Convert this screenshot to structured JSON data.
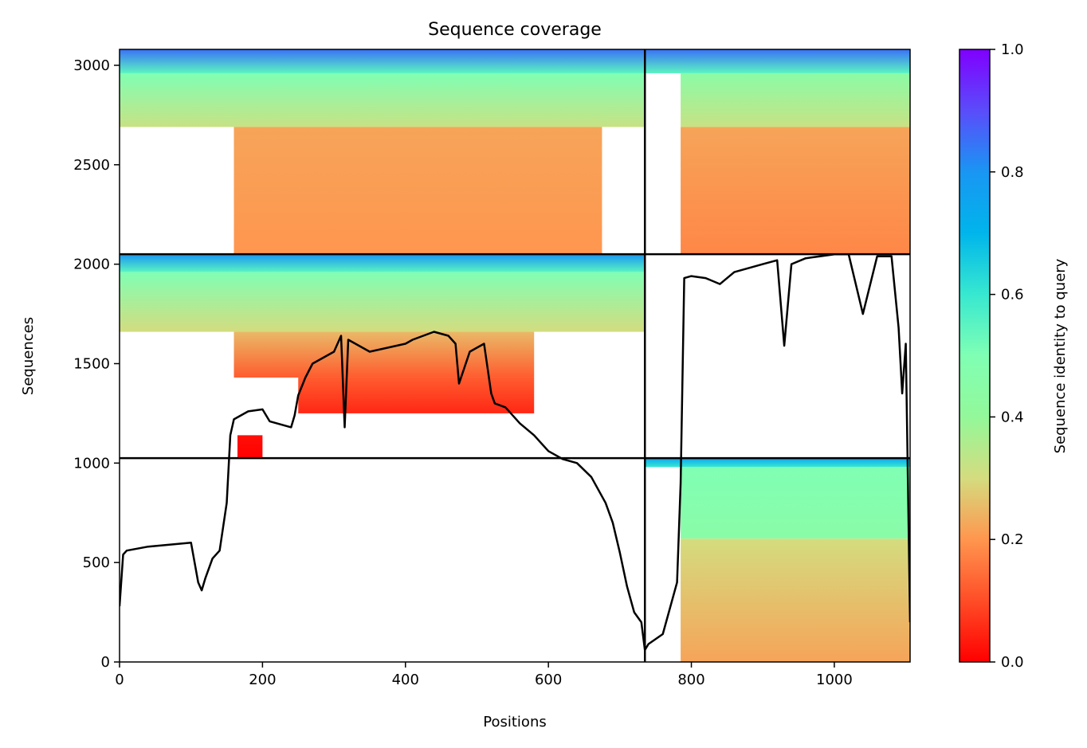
{
  "chart_data": {
    "type": "heatmap",
    "title": "Sequence coverage",
    "xlabel": "Positions",
    "ylabel": "Sequences",
    "xlim": [
      0,
      1106
    ],
    "ylim": [
      0,
      3080
    ],
    "x_ticks": [
      0,
      200,
      400,
      600,
      800,
      1000
    ],
    "y_ticks": [
      0,
      500,
      1000,
      1500,
      2000,
      2500,
      3000
    ],
    "chain_boundaries_x": [
      735
    ],
    "group_boundaries_y": [
      1025,
      2050
    ],
    "colorbar": {
      "label": "Sequence identity to query",
      "range": [
        0,
        1
      ],
      "ticks": [
        0.0,
        0.2,
        0.4,
        0.6,
        0.8,
        1.0
      ],
      "colormap": "rainbow_r"
    },
    "blocks": [
      {
        "x": [
          0,
          735
        ],
        "y": [
          2960,
          3080
        ],
        "identity": [
          0.55,
          0.85
        ]
      },
      {
        "x": [
          0,
          735
        ],
        "y": [
          2690,
          2960
        ],
        "identity": [
          0.32,
          0.5
        ]
      },
      {
        "x": [
          160,
          675
        ],
        "y": [
          2050,
          2690
        ],
        "identity": [
          0.2,
          0.22
        ]
      },
      {
        "x": [
          735,
          1106
        ],
        "y": [
          2960,
          3080
        ],
        "identity": [
          0.55,
          0.85
        ]
      },
      {
        "x": [
          785,
          1106
        ],
        "y": [
          2690,
          2960
        ],
        "identity": [
          0.32,
          0.45
        ]
      },
      {
        "x": [
          785,
          1106
        ],
        "y": [
          2050,
          2690
        ],
        "identity": [
          0.18,
          0.22
        ]
      },
      {
        "x": [
          0,
          735
        ],
        "y": [
          1960,
          2050
        ],
        "identity": [
          0.55,
          0.8
        ]
      },
      {
        "x": [
          0,
          735
        ],
        "y": [
          1660,
          1960
        ],
        "identity": [
          0.3,
          0.5
        ]
      },
      {
        "x": [
          160,
          580
        ],
        "y": [
          1430,
          1660
        ],
        "identity": [
          0.12,
          0.25
        ]
      },
      {
        "x": [
          250,
          580
        ],
        "y": [
          1250,
          1430
        ],
        "identity": [
          0.05,
          0.12
        ]
      },
      {
        "x": [
          165,
          200
        ],
        "y": [
          1025,
          1140
        ],
        "identity": [
          0.0,
          0.02
        ]
      },
      {
        "x": [
          735,
          1106
        ],
        "y": [
          980,
          1025
        ],
        "identity": [
          0.6,
          0.75
        ]
      },
      {
        "x": [
          785,
          1106
        ],
        "y": [
          620,
          980
        ],
        "identity": [
          0.45,
          0.5
        ]
      },
      {
        "x": [
          785,
          1106
        ],
        "y": [
          0,
          620
        ],
        "identity": [
          0.22,
          0.3
        ]
      }
    ],
    "coverage_line": {
      "x": [
        0,
        5,
        10,
        40,
        70,
        100,
        110,
        115,
        120,
        130,
        140,
        150,
        155,
        160,
        180,
        200,
        210,
        240,
        245,
        250,
        260,
        270,
        300,
        310,
        315,
        320,
        350,
        400,
        410,
        440,
        460,
        470,
        475,
        490,
        510,
        520,
        525,
        540,
        560,
        580,
        590,
        600,
        620,
        640,
        660,
        680,
        690,
        700,
        710,
        720,
        730,
        735,
        740,
        760,
        780,
        785,
        790,
        800,
        820,
        840,
        860,
        900,
        920,
        930,
        940,
        960,
        980,
        1000,
        1020,
        1040,
        1060,
        1080,
        1090,
        1095,
        1100,
        1106
      ],
      "y": [
        280,
        540,
        560,
        580,
        590,
        600,
        400,
        360,
        420,
        520,
        560,
        800,
        1140,
        1220,
        1260,
        1270,
        1210,
        1180,
        1240,
        1340,
        1430,
        1500,
        1560,
        1640,
        1180,
        1620,
        1560,
        1600,
        1620,
        1660,
        1640,
        1600,
        1400,
        1560,
        1600,
        1350,
        1300,
        1280,
        1200,
        1140,
        1100,
        1060,
        1020,
        1000,
        930,
        800,
        700,
        550,
        380,
        250,
        200,
        60,
        90,
        140,
        400,
        900,
        1930,
        1940,
        1930,
        1900,
        1960,
        2000,
        2020,
        1590,
        2000,
        2030,
        2040,
        2050,
        2050,
        1750,
        2040,
        2040,
        1680,
        1350,
        1600,
        200
      ]
    }
  }
}
